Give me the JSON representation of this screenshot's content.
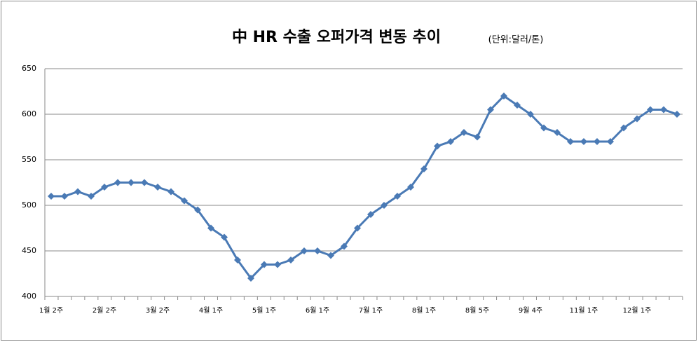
{
  "chart_data": {
    "type": "line",
    "title": "中 HR 수출 오퍼가격 변동 추이",
    "subtitle": "(단위:달러/톤)",
    "categories": [
      "1월 2주",
      null,
      null,
      null,
      "2월 2주",
      null,
      null,
      null,
      "3월 2주",
      null,
      null,
      null,
      "4월 1주",
      null,
      null,
      null,
      "5월 1주",
      null,
      null,
      null,
      "6월 1주",
      null,
      null,
      null,
      "7월 1주",
      null,
      null,
      null,
      "8월 1주",
      null,
      null,
      null,
      "8월 5주",
      null,
      null,
      null,
      "9월 4주",
      null,
      null,
      null,
      "11월 1주",
      null,
      null,
      null,
      "12월 1주",
      null,
      null,
      null
    ],
    "series": [
      {
        "color": "#4a7ab5",
        "values": [
          510,
          510,
          515,
          510,
          520,
          525,
          525,
          525,
          520,
          515,
          505,
          495,
          475,
          465,
          440,
          420,
          435,
          435,
          440,
          450,
          450,
          445,
          455,
          475,
          490,
          500,
          510,
          520,
          540,
          565,
          570,
          580,
          575,
          605,
          620,
          610,
          600,
          585,
          580,
          570,
          570,
          570,
          570,
          585,
          595,
          605,
          605,
          600
        ]
      }
    ],
    "ylim": [
      400,
      650
    ],
    "yticks": [
      400,
      450,
      500,
      550,
      600,
      650
    ],
    "grid": true
  }
}
